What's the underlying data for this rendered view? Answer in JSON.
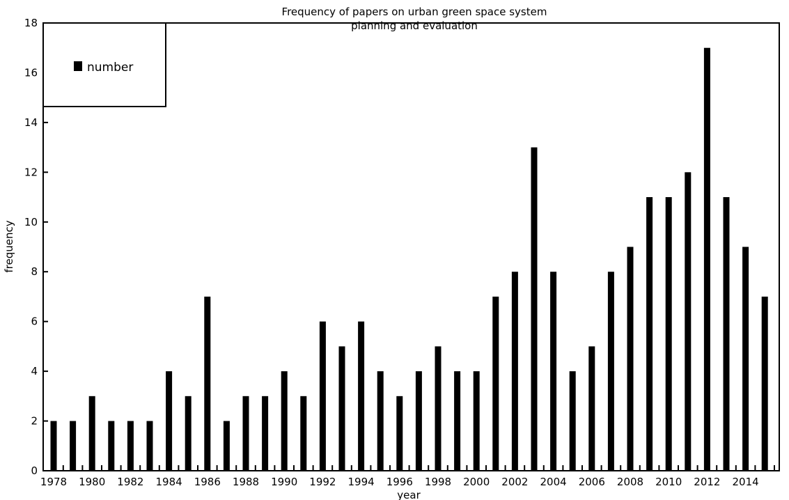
{
  "chart_data": {
    "type": "bar",
    "title_line1": "Frequency of papers on urban green space system",
    "title_line2": "planning and evaluation",
    "xlabel": "year",
    "ylabel": "frequency",
    "ylim": [
      0,
      18
    ],
    "yticks": [
      0,
      2,
      4,
      6,
      8,
      10,
      12,
      14,
      16,
      18
    ],
    "grid": false,
    "legend_position": "top-left",
    "bar_color": "#000000",
    "categories": [
      "1978",
      "1979",
      "1980",
      "1981",
      "1982",
      "1983",
      "1984",
      "1985",
      "1986",
      "1987",
      "1988",
      "1989",
      "1990",
      "1991",
      "1992",
      "1993",
      "1994",
      "1995",
      "1996",
      "1997",
      "1998",
      "1999",
      "2000",
      "2001",
      "2002",
      "2003",
      "2004",
      "2005",
      "2006",
      "2007",
      "2008",
      "2009",
      "2010",
      "2011",
      "2012",
      "2013",
      "2014",
      "2015"
    ],
    "xtick_labels": [
      "1978",
      "1980",
      "1982",
      "1984",
      "1986",
      "1988",
      "1990",
      "1992",
      "1994",
      "1996",
      "1998",
      "2000",
      "2002",
      "2004",
      "2006",
      "2008",
      "2010",
      "2012",
      "2014"
    ],
    "series": [
      {
        "name": "number",
        "values": [
          2,
          2,
          3,
          2,
          2,
          2,
          4,
          3,
          7,
          2,
          3,
          3,
          4,
          3,
          6,
          5,
          6,
          4,
          3,
          4,
          5,
          4,
          4,
          7,
          8,
          13,
          8,
          4,
          5,
          8,
          9,
          11,
          11,
          12,
          17,
          11,
          9,
          7
        ]
      }
    ]
  }
}
